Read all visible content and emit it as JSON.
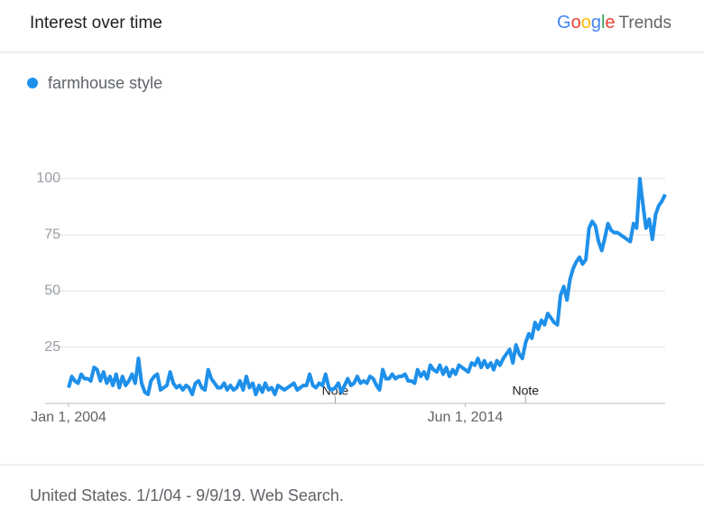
{
  "header": {
    "title": "Interest over time",
    "brand": "Google",
    "product": "Trends"
  },
  "chart_data": {
    "type": "line",
    "x": [
      "2004-01-01",
      "2004-02-01",
      "2004-03-01",
      "2004-04-01",
      "2004-05-01",
      "2004-06-01",
      "2004-07-01",
      "2004-08-01",
      "2004-09-01",
      "2004-10-01",
      "2004-11-01",
      "2004-12-01",
      "2005-01-01",
      "2005-02-01",
      "2005-03-01",
      "2005-04-01",
      "2005-05-01",
      "2005-06-01",
      "2005-07-01",
      "2005-08-01",
      "2005-09-01",
      "2005-10-01",
      "2005-11-01",
      "2005-12-01",
      "2006-01-01",
      "2006-02-01",
      "2006-03-01",
      "2006-04-01",
      "2006-05-01",
      "2006-06-01",
      "2006-07-01",
      "2006-08-01",
      "2006-09-01",
      "2006-10-01",
      "2006-11-01",
      "2006-12-01",
      "2007-01-01",
      "2007-02-01",
      "2007-03-01",
      "2007-04-01",
      "2007-05-01",
      "2007-06-01",
      "2007-07-01",
      "2007-08-01",
      "2007-09-01",
      "2007-10-01",
      "2007-11-01",
      "2007-12-01",
      "2008-01-01",
      "2008-02-01",
      "2008-03-01",
      "2008-04-01",
      "2008-05-01",
      "2008-06-01",
      "2008-07-01",
      "2008-08-01",
      "2008-09-01",
      "2008-10-01",
      "2008-11-01",
      "2008-12-01",
      "2009-01-01",
      "2009-02-01",
      "2009-03-01",
      "2009-04-01",
      "2009-05-01",
      "2009-06-01",
      "2009-07-01",
      "2009-08-01",
      "2009-09-01",
      "2009-10-01",
      "2009-11-01",
      "2009-12-01",
      "2010-01-01",
      "2010-02-01",
      "2010-03-01",
      "2010-04-01",
      "2010-05-01",
      "2010-06-01",
      "2010-07-01",
      "2010-08-01",
      "2010-09-01",
      "2010-10-01",
      "2010-11-01",
      "2010-12-01",
      "2011-01-01",
      "2011-02-01",
      "2011-03-01",
      "2011-04-01",
      "2011-05-01",
      "2011-06-01",
      "2011-07-01",
      "2011-08-01",
      "2011-09-01",
      "2011-10-01",
      "2011-11-01",
      "2011-12-01",
      "2012-01-01",
      "2012-02-01",
      "2012-03-01",
      "2012-04-01",
      "2012-05-01",
      "2012-06-01",
      "2012-07-01",
      "2012-08-01",
      "2012-09-01",
      "2012-10-01",
      "2012-11-01",
      "2012-12-01",
      "2013-01-01",
      "2013-02-01",
      "2013-03-01",
      "2013-04-01",
      "2013-05-01",
      "2013-06-01",
      "2013-07-01",
      "2013-08-01",
      "2013-09-01",
      "2013-10-01",
      "2013-11-01",
      "2013-12-01",
      "2014-01-01",
      "2014-02-01",
      "2014-03-01",
      "2014-04-01",
      "2014-05-01",
      "2014-06-01",
      "2014-07-01",
      "2014-08-01",
      "2014-09-01",
      "2014-10-01",
      "2014-11-01",
      "2014-12-01",
      "2015-01-01",
      "2015-02-01",
      "2015-03-01",
      "2015-04-01",
      "2015-05-01",
      "2015-06-01",
      "2015-07-01",
      "2015-08-01",
      "2015-09-01",
      "2015-10-01",
      "2015-11-01",
      "2015-12-01",
      "2016-01-01",
      "2016-02-01",
      "2016-03-01",
      "2016-04-01",
      "2016-05-01",
      "2016-06-01",
      "2016-07-01",
      "2016-08-01",
      "2016-09-01",
      "2016-10-01",
      "2016-11-01",
      "2016-12-01",
      "2017-01-01",
      "2017-02-01",
      "2017-03-01",
      "2017-04-01",
      "2017-05-01",
      "2017-06-01",
      "2017-07-01",
      "2017-08-01",
      "2017-09-01",
      "2017-10-01",
      "2017-11-01",
      "2017-12-01",
      "2018-01-01",
      "2018-02-01",
      "2018-03-01",
      "2018-04-01",
      "2018-05-01",
      "2018-06-01",
      "2018-07-01",
      "2018-08-01",
      "2018-09-01",
      "2018-10-01",
      "2018-11-01",
      "2018-12-01",
      "2019-01-01",
      "2019-02-01",
      "2019-03-01",
      "2019-04-01",
      "2019-05-01",
      "2019-06-01",
      "2019-07-01",
      "2019-08-01",
      "2019-09-01"
    ],
    "series": [
      {
        "name": "farmhouse style",
        "color": "#1e90ea",
        "values": [
          7,
          12,
          10,
          9,
          13,
          11,
          11,
          10,
          16,
          15,
          10,
          14,
          9,
          12,
          8,
          13,
          7,
          12,
          8,
          10,
          13,
          9,
          20,
          9,
          5,
          4,
          10,
          12,
          13,
          6,
          7,
          8,
          14,
          9,
          7,
          8,
          6,
          8,
          7,
          4,
          9,
          10,
          7,
          6,
          15,
          11,
          9,
          7,
          7,
          9,
          6,
          8,
          6,
          7,
          10,
          6,
          12,
          7,
          9,
          4,
          8,
          5,
          9,
          6,
          7,
          4,
          8,
          7,
          6,
          7,
          8,
          9,
          6,
          7,
          8,
          8,
          13,
          8,
          7,
          9,
          8,
          13,
          7,
          6,
          7,
          9,
          5,
          8,
          11,
          8,
          9,
          12,
          9,
          10,
          9,
          12,
          11,
          8,
          6,
          15,
          11,
          11,
          13,
          11,
          12,
          12,
          13,
          10,
          10,
          9,
          15,
          12,
          14,
          11,
          17,
          15,
          14,
          17,
          13,
          16,
          12,
          15,
          13,
          17,
          16,
          15,
          14,
          18,
          17,
          20,
          16,
          19,
          16,
          18,
          15,
          19,
          17,
          20,
          22,
          24,
          18,
          26,
          22,
          20,
          27,
          31,
          29,
          36,
          33,
          37,
          35,
          40,
          38,
          36,
          35,
          48,
          52,
          46,
          55,
          60,
          63,
          65,
          62,
          64,
          78,
          81,
          79,
          72,
          68,
          74,
          80,
          77,
          76,
          76,
          75,
          74,
          73,
          72,
          80,
          78,
          100,
          88,
          78,
          82,
          73,
          84,
          88,
          90,
          93
        ]
      }
    ],
    "xlim": [
      "2004-01-01",
      "2019-09-01"
    ],
    "xticks": [
      {
        "value": "2004-01-01",
        "label": "Jan 1, 2004"
      },
      {
        "value": "2014-06-01",
        "label": "Jun 1, 2014"
      }
    ],
    "ylim": [
      0,
      100
    ],
    "yticks": [
      25,
      50,
      75,
      100
    ],
    "grid": true,
    "annotations": [
      {
        "label": "Note",
        "x": "2011-01-01"
      },
      {
        "label": "Note",
        "x": "2016-01-01"
      }
    ]
  },
  "footer": {
    "text": "United States. 1/1/04 - 9/9/19. Web Search."
  }
}
